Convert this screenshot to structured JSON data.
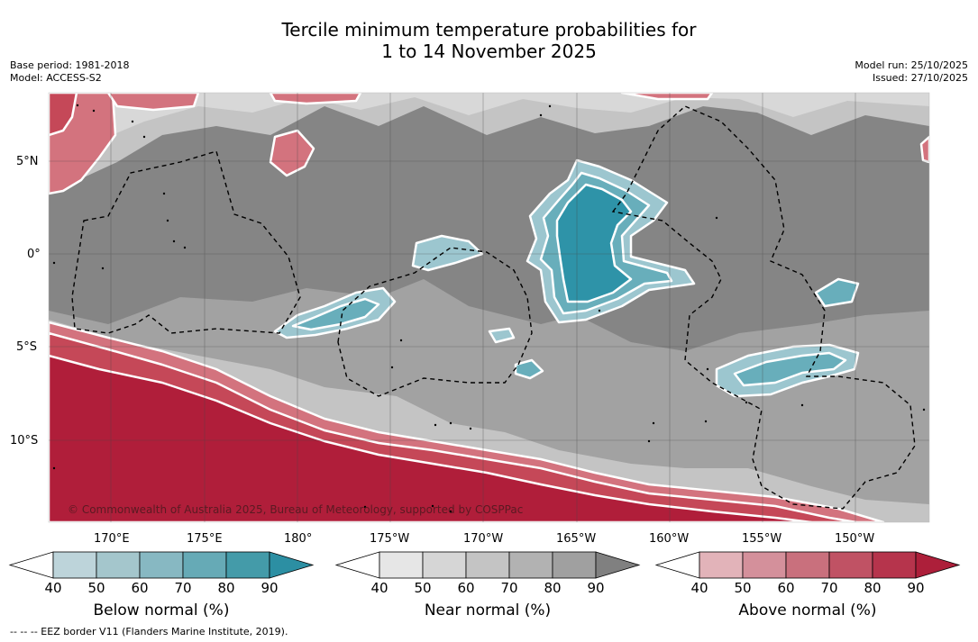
{
  "title": {
    "line1": "Tercile minimum temperature probabilities for",
    "line2": "1 to 14 November 2025"
  },
  "meta_left": {
    "base_period": "Base period: 1981-2018",
    "model": "Model: ACCESS-S2"
  },
  "meta_right": {
    "model_run": "Model run: 25/10/2025",
    "issued": "Issued: 27/10/2025"
  },
  "map": {
    "lat_labels": [
      "5°N",
      "0°",
      "5°S",
      "10°S"
    ],
    "lon_labels": [
      "170°E",
      "175°E",
      "180°",
      "175°W",
      "170°W",
      "165°W",
      "160°W",
      "155°W",
      "150°W"
    ],
    "copyright": "© Commonwealth of Australia 2025, Bureau of Meteorology, supported by COSPPac",
    "colors": {
      "near_base": "#858585",
      "near_mid": "#a2a2a2",
      "near_light": "#c4c4c4",
      "near_lighter": "#d8d8d8",
      "below_core": "#2e93a8",
      "below_mid": "#68aebb",
      "below_light": "#9cc6cf",
      "above_core": "#b01e3a",
      "above_mid": "#c54858",
      "above_light": "#d3737e",
      "eez_border": "#000000",
      "land": "#000000"
    }
  },
  "colorbars": [
    {
      "title": "Below normal (%)",
      "ticks": [
        "40",
        "50",
        "60",
        "70",
        "80",
        "90"
      ],
      "colors": [
        "#bdd4da",
        "#a4c6cc",
        "#87b8c2",
        "#66aab6",
        "#449ba9",
        "#2c8fa3"
      ]
    },
    {
      "title": "Near normal (%)",
      "ticks": [
        "40",
        "50",
        "60",
        "70",
        "80",
        "90"
      ],
      "colors": [
        "#e6e6e6",
        "#d6d6d6",
        "#c4c4c4",
        "#b2b2b2",
        "#a0a0a0",
        "#808080"
      ]
    },
    {
      "title": "Above normal (%)",
      "ticks": [
        "40",
        "50",
        "60",
        "70",
        "80",
        "90"
      ],
      "colors": [
        "#e2b3b9",
        "#d4909b",
        "#c9707d",
        "#c05264",
        "#b6344c",
        "#ad1f3a"
      ]
    }
  ],
  "footnote": "--  --  -- EEZ border V11 (Flanders Marine Institute, 2019)."
}
